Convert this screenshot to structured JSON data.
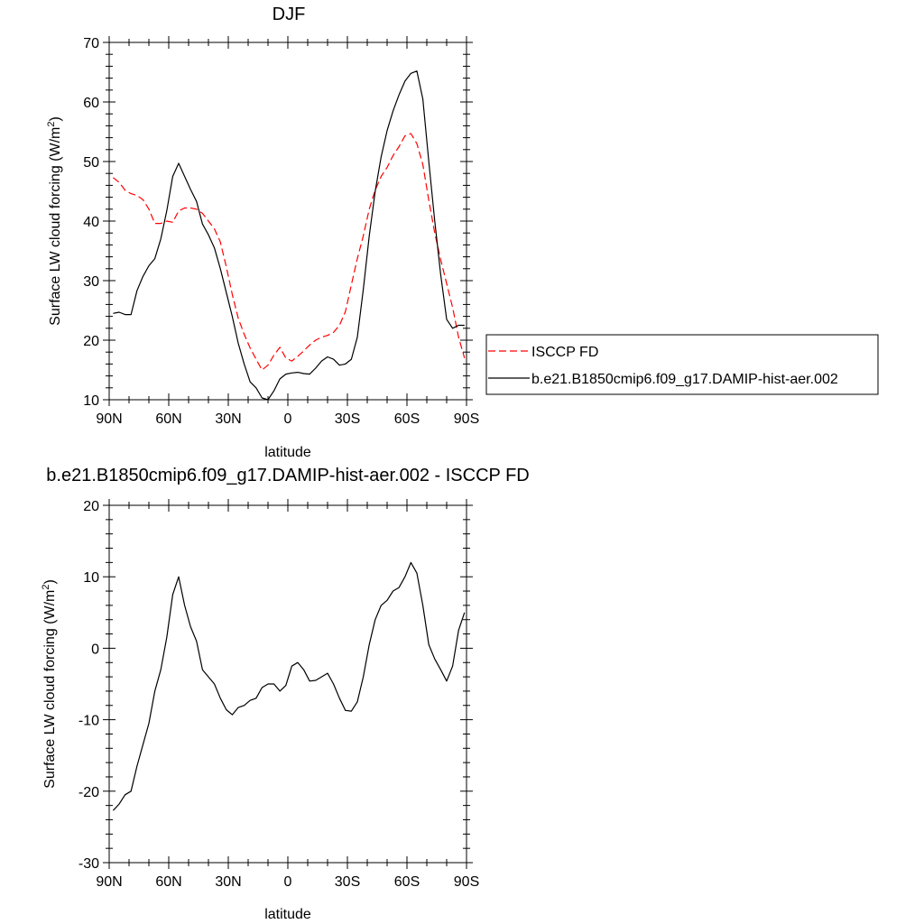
{
  "chart_data": [
    {
      "type": "line",
      "title": "DJF",
      "xlabel": "latitude",
      "ylabel": "Surface LW cloud forcing (W/m",
      "ylabel_sup": "2",
      "ylabel_close": ")",
      "xlim": [
        90,
        -90
      ],
      "ylim": [
        10,
        70
      ],
      "xticks": [
        {
          "value": 90,
          "label": "90N"
        },
        {
          "value": 60,
          "label": "60N"
        },
        {
          "value": 30,
          "label": "30N"
        },
        {
          "value": 0,
          "label": "0"
        },
        {
          "value": -30,
          "label": "30S"
        },
        {
          "value": -60,
          "label": "60S"
        },
        {
          "value": -90,
          "label": "90S"
        }
      ],
      "yticks": [
        10,
        20,
        30,
        40,
        50,
        60,
        70
      ],
      "legend_position": "right",
      "series": [
        {
          "name": "ISCCP FD",
          "color": "#ff0000",
          "dashed": true,
          "x": [
            88,
            85,
            82,
            79,
            76,
            73,
            70,
            67,
            64,
            61,
            58,
            55,
            52,
            49,
            46,
            43,
            40,
            37,
            34,
            31,
            28,
            25,
            22,
            19,
            16,
            13,
            10,
            7,
            4,
            1,
            -2,
            -5,
            -8,
            -11,
            -14,
            -17,
            -20,
            -23,
            -26,
            -29,
            -32,
            -35,
            -38,
            -41,
            -44,
            -47,
            -50,
            -53,
            -56,
            -59,
            -62,
            -65,
            -68,
            -71,
            -74,
            -77,
            -80,
            -83,
            -86,
            -89
          ],
          "y": [
            47.3,
            46.5,
            45.2,
            44.6,
            44.3,
            43.6,
            42.0,
            39.6,
            39.6,
            40.0,
            39.8,
            41.7,
            42.2,
            42.2,
            42.0,
            41.3,
            40.0,
            38.7,
            36.5,
            32.3,
            27.7,
            23.7,
            21.0,
            18.7,
            16.8,
            15.0,
            15.8,
            17.5,
            18.8,
            17.0,
            16.5,
            17.3,
            18.2,
            19.2,
            20.0,
            20.5,
            20.8,
            21.3,
            22.5,
            24.8,
            29.3,
            33.7,
            37.5,
            42.0,
            45.2,
            47.5,
            49.0,
            51.0,
            52.5,
            54.3,
            54.7,
            53.0,
            49.5,
            43.5,
            38.0,
            33.5,
            29.5,
            25.5,
            20.5,
            17.0
          ]
        },
        {
          "name": "b.e21.B1850cmip6.f09_g17.DAMIP-hist-aer.002",
          "color": "#000000",
          "dashed": false,
          "x": [
            88,
            85,
            82,
            79,
            76,
            73,
            70,
            67,
            64,
            61,
            58,
            55,
            52,
            49,
            46,
            43,
            40,
            37,
            34,
            31,
            28,
            25,
            22,
            19,
            16,
            13,
            10,
            7,
            4,
            1,
            -2,
            -5,
            -8,
            -11,
            -14,
            -17,
            -20,
            -23,
            -26,
            -29,
            -32,
            -35,
            -38,
            -41,
            -44,
            -47,
            -50,
            -53,
            -56,
            -59,
            -62,
            -65,
            -68,
            -71,
            -74,
            -77,
            -80,
            -83,
            -86,
            -89
          ],
          "y": [
            24.5,
            24.7,
            24.3,
            24.3,
            28.3,
            30.7,
            32.5,
            33.7,
            37.0,
            41.7,
            47.5,
            49.7,
            47.5,
            45.3,
            43.3,
            39.5,
            37.7,
            35.5,
            32.0,
            28.0,
            24.0,
            19.5,
            16.0,
            13.0,
            12.0,
            10.3,
            10.0,
            11.5,
            13.5,
            14.3,
            14.5,
            14.6,
            14.4,
            14.3,
            15.3,
            16.5,
            17.2,
            16.8,
            15.8,
            16.0,
            16.8,
            20.5,
            28.5,
            37.5,
            45.0,
            50.8,
            55.2,
            58.5,
            61.2,
            63.5,
            64.8,
            65.2,
            60.5,
            50.0,
            40.0,
            31.0,
            23.5,
            22.0,
            22.5,
            22.5
          ]
        }
      ]
    },
    {
      "type": "line",
      "title": "b.e21.B1850cmip6.f09_g17.DAMIP-hist-aer.002 - ISCCP FD",
      "xlabel": "latitude",
      "ylabel": "Surface LW cloud forcing (W/m",
      "ylabel_sup": "2",
      "ylabel_close": ")",
      "xlim": [
        90,
        -90
      ],
      "ylim": [
        -30,
        20
      ],
      "xticks": [
        {
          "value": 90,
          "label": "90N"
        },
        {
          "value": 60,
          "label": "60N"
        },
        {
          "value": 30,
          "label": "30N"
        },
        {
          "value": 0,
          "label": "0"
        },
        {
          "value": -30,
          "label": "30S"
        },
        {
          "value": -60,
          "label": "60S"
        },
        {
          "value": -90,
          "label": "90S"
        }
      ],
      "yticks": [
        -30,
        -20,
        -10,
        0,
        10,
        20
      ],
      "series": [
        {
          "color": "#000000",
          "dashed": false,
          "x": [
            88,
            85,
            82,
            79,
            76,
            73,
            70,
            67,
            64,
            61,
            58,
            55,
            52,
            49,
            46,
            43,
            40,
            37,
            34,
            31,
            28,
            25,
            22,
            19,
            16,
            13,
            10,
            7,
            4,
            1,
            -2,
            -5,
            -8,
            -11,
            -14,
            -17,
            -20,
            -23,
            -26,
            -29,
            -32,
            -35,
            -38,
            -41,
            -44,
            -47,
            -50,
            -53,
            -56,
            -59,
            -62,
            -65,
            -68,
            -71,
            -74,
            -77,
            -80,
            -83,
            -86,
            -89
          ],
          "y": [
            -22.7,
            -21.8,
            -20.5,
            -20.0,
            -16.5,
            -13.5,
            -10.5,
            -6.0,
            -3.0,
            1.5,
            7.5,
            10.0,
            6.0,
            3.0,
            1.0,
            -3.0,
            -4.0,
            -5.0,
            -7.0,
            -8.6,
            -9.3,
            -8.3,
            -8.0,
            -7.3,
            -7.0,
            -5.5,
            -5.0,
            -5.0,
            -6.0,
            -5.2,
            -2.5,
            -2.0,
            -3.0,
            -4.6,
            -4.5,
            -4.0,
            -3.5,
            -5.0,
            -7.0,
            -8.7,
            -8.8,
            -7.5,
            -4.0,
            0.5,
            4.0,
            6.0,
            6.7,
            8.0,
            8.5,
            10.0,
            12.0,
            10.5,
            6.0,
            0.5,
            -1.5,
            -3.0,
            -4.6,
            -2.5,
            2.5,
            5.0
          ]
        }
      ]
    }
  ]
}
